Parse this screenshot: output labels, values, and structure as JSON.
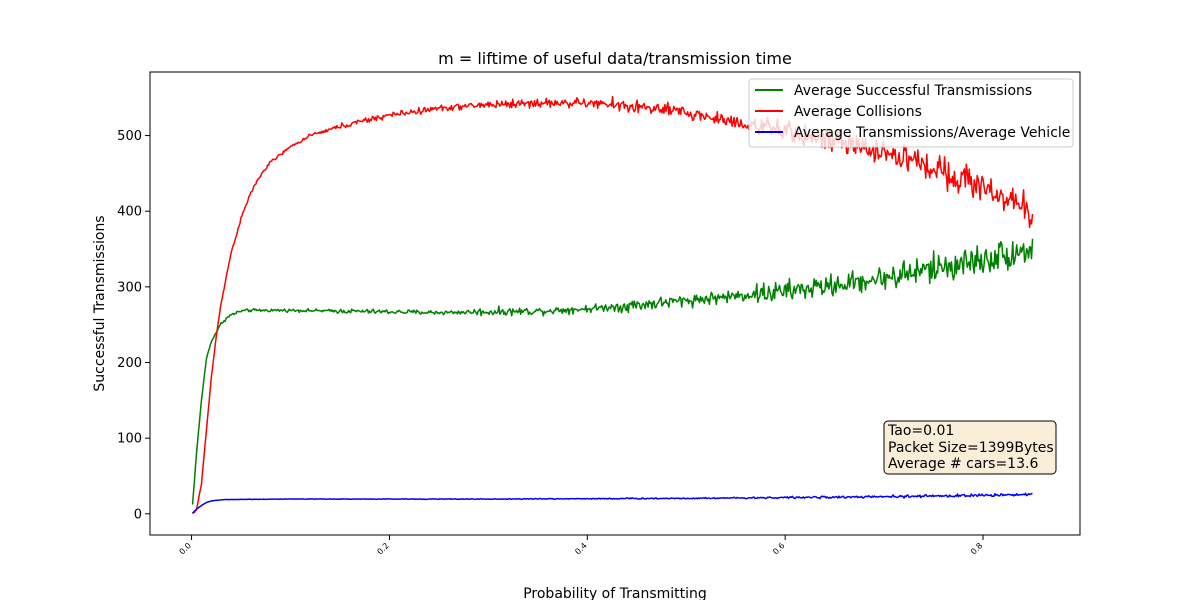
{
  "chart_data": {
    "type": "line",
    "title": "m = liftime of useful data/transmission time",
    "xlabel": "Probability of Transmitting",
    "ylabel": "Successful Transmissions",
    "xlim": [
      -0.042,
      0.898
    ],
    "ylim": [
      -28,
      584
    ],
    "xticks": [
      {
        "value": 0.0,
        "label": "0.0"
      },
      {
        "value": 0.2,
        "label": "0.2"
      },
      {
        "value": 0.4,
        "label": "0.4"
      },
      {
        "value": 0.6,
        "label": "0.6"
      },
      {
        "value": 0.8,
        "label": "0.8"
      }
    ],
    "yticks": [
      {
        "value": 0,
        "label": "0"
      },
      {
        "value": 100,
        "label": "100"
      },
      {
        "value": 200,
        "label": "200"
      },
      {
        "value": 300,
        "label": "300"
      },
      {
        "value": 400,
        "label": "400"
      },
      {
        "value": 500,
        "label": "500"
      }
    ],
    "grid": false,
    "legend_position": "upper-right",
    "series": [
      {
        "name": "Average Successful Transmissions",
        "color": "#008000",
        "noise": [
          2,
          3,
          5,
          8,
          14,
          20
        ],
        "points": [
          [
            0.001,
            12
          ],
          [
            0.005,
            80
          ],
          [
            0.01,
            150
          ],
          [
            0.015,
            205
          ],
          [
            0.02,
            228
          ],
          [
            0.025,
            240
          ],
          [
            0.03,
            252
          ],
          [
            0.035,
            258
          ],
          [
            0.04,
            263
          ],
          [
            0.05,
            268
          ],
          [
            0.06,
            269
          ],
          [
            0.1,
            269
          ],
          [
            0.15,
            268
          ],
          [
            0.2,
            267
          ],
          [
            0.25,
            266
          ],
          [
            0.3,
            267
          ],
          [
            0.35,
            268
          ],
          [
            0.4,
            271
          ],
          [
            0.45,
            276
          ],
          [
            0.5,
            282
          ],
          [
            0.55,
            288
          ],
          [
            0.6,
            294
          ],
          [
            0.65,
            302
          ],
          [
            0.7,
            312
          ],
          [
            0.75,
            324
          ],
          [
            0.8,
            336
          ],
          [
            0.82,
            342
          ],
          [
            0.85,
            350
          ]
        ]
      },
      {
        "name": "Average Collisions",
        "color": "#ff0000",
        "noise": [
          2,
          4,
          6,
          9,
          14,
          20
        ],
        "points": [
          [
            0.001,
            0
          ],
          [
            0.005,
            5
          ],
          [
            0.01,
            40
          ],
          [
            0.015,
            110
          ],
          [
            0.02,
            180
          ],
          [
            0.025,
            235
          ],
          [
            0.03,
            280
          ],
          [
            0.04,
            345
          ],
          [
            0.05,
            390
          ],
          [
            0.06,
            425
          ],
          [
            0.07,
            448
          ],
          [
            0.08,
            465
          ],
          [
            0.1,
            485
          ],
          [
            0.12,
            500
          ],
          [
            0.15,
            512
          ],
          [
            0.2,
            527
          ],
          [
            0.25,
            536
          ],
          [
            0.3,
            541
          ],
          [
            0.35,
            543
          ],
          [
            0.4,
            543
          ],
          [
            0.45,
            538
          ],
          [
            0.5,
            530
          ],
          [
            0.55,
            518
          ],
          [
            0.6,
            505
          ],
          [
            0.65,
            492
          ],
          [
            0.7,
            478
          ],
          [
            0.75,
            458
          ],
          [
            0.8,
            432
          ],
          [
            0.82,
            420
          ],
          [
            0.85,
            395
          ]
        ]
      },
      {
        "name": "Average Transmissions/Average Vehicle",
        "color": "#0000ff",
        "noise": [
          0.3,
          0.4,
          0.6,
          0.9,
          1.3,
          1.8
        ],
        "points": [
          [
            0.001,
            1
          ],
          [
            0.005,
            6
          ],
          [
            0.01,
            11
          ],
          [
            0.015,
            15
          ],
          [
            0.02,
            17
          ],
          [
            0.03,
            18.5
          ],
          [
            0.04,
            19
          ],
          [
            0.1,
            19.5
          ],
          [
            0.3,
            19.5
          ],
          [
            0.5,
            20.5
          ],
          [
            0.6,
            21.5
          ],
          [
            0.7,
            22.5
          ],
          [
            0.8,
            24.5
          ],
          [
            0.85,
            26
          ]
        ]
      }
    ],
    "annotation": {
      "lines": [
        "Tao=0.01",
        "Packet Size=1399Bytes",
        "Average # cars=13.6"
      ],
      "box_color": "#f5deb3"
    }
  }
}
